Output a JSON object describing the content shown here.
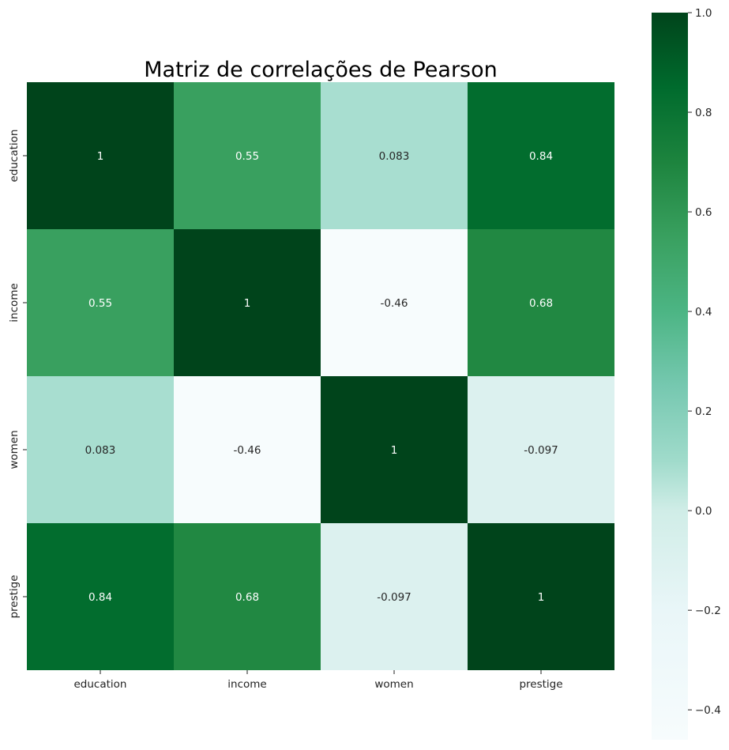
{
  "chart_data": {
    "type": "heatmap",
    "title": "Matriz de correlações de Pearson",
    "xlabel": "",
    "ylabel": "",
    "categories_x": [
      "education",
      "income",
      "women",
      "prestige"
    ],
    "categories_y": [
      "education",
      "income",
      "women",
      "prestige"
    ],
    "values": [
      [
        1,
        0.55,
        0.083,
        0.84
      ],
      [
        0.55,
        1,
        -0.46,
        0.68
      ],
      [
        0.083,
        -0.46,
        1,
        -0.097
      ],
      [
        0.84,
        0.68,
        -0.097,
        1
      ]
    ],
    "annotations": [
      [
        "1",
        "0.55",
        "0.083",
        "0.84"
      ],
      [
        "0.55",
        "1",
        "-0.46",
        "0.68"
      ],
      [
        "0.083",
        "-0.46",
        "1",
        "-0.097"
      ],
      [
        "0.84",
        "0.68",
        "-0.097",
        "1"
      ]
    ],
    "colormap": "Greens-blue",
    "vmin": -0.46,
    "vmax": 1.0,
    "colorbar_ticks": [
      {
        "value": 1.0,
        "label": "1.0"
      },
      {
        "value": 0.8,
        "label": "0.8"
      },
      {
        "value": 0.6,
        "label": "0.6"
      },
      {
        "value": 0.4,
        "label": "0.4"
      },
      {
        "value": 0.2,
        "label": "0.2"
      },
      {
        "value": 0.0,
        "label": "0.0"
      },
      {
        "value": -0.2,
        "label": "−0.2"
      },
      {
        "value": -0.4,
        "label": "−0.4"
      }
    ],
    "colorbar_stops": [
      {
        "value": -0.46,
        "color": "#f7fcfd"
      },
      {
        "value": -0.2,
        "color": "#e9f6f8"
      },
      {
        "value": 0.0,
        "color": "#d0ede7"
      },
      {
        "value": 0.1,
        "color": "#a0dbcb"
      },
      {
        "value": 0.25,
        "color": "#76c8b0"
      },
      {
        "value": 0.4,
        "color": "#4cb584"
      },
      {
        "value": 0.55,
        "color": "#39a05f"
      },
      {
        "value": 0.7,
        "color": "#1d843e"
      },
      {
        "value": 0.85,
        "color": "#006b2d"
      },
      {
        "value": 1.0,
        "color": "#00441b"
      }
    ],
    "grid": false,
    "legend": "colorbar-right"
  }
}
